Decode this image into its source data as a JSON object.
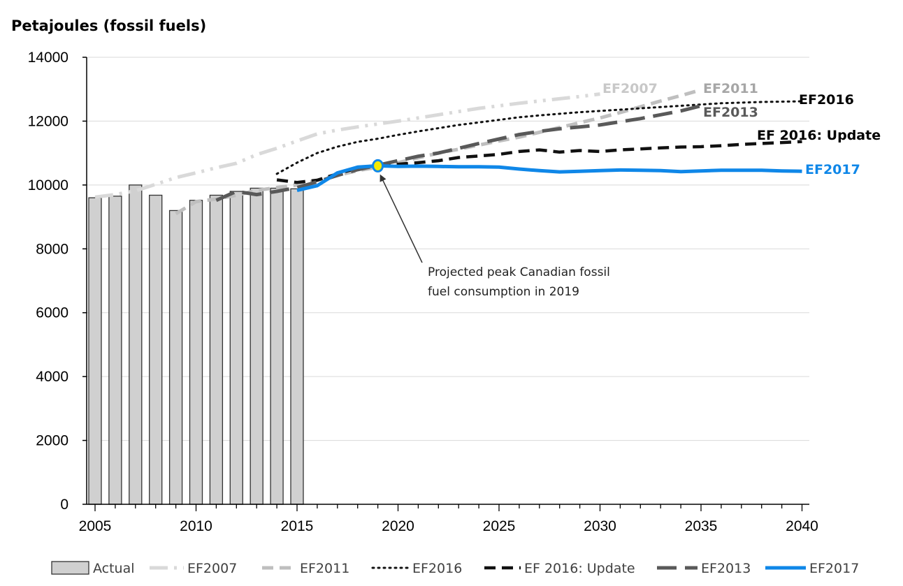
{
  "chart_data": {
    "type": "line",
    "title": "",
    "ylabel": "Petajoules (fossil fuels)",
    "xlabel": "",
    "xlim": [
      2005,
      2040
    ],
    "ylim": [
      0,
      14000
    ],
    "xticks": [
      2005,
      2010,
      2015,
      2020,
      2025,
      2030,
      2035,
      2040
    ],
    "yticks": [
      0,
      2000,
      4000,
      6000,
      8000,
      10000,
      12000,
      14000
    ],
    "grid": "horizontal",
    "legend_position": "bottom",
    "bars": {
      "name": "Actual",
      "color": "#d0d0d0",
      "x": [
        2005,
        2006,
        2007,
        2008,
        2009,
        2010,
        2011,
        2012,
        2013,
        2014,
        2015
      ],
      "values": [
        9600,
        9650,
        10000,
        9680,
        9200,
        9520,
        9680,
        9800,
        9900,
        9900,
        9880
      ]
    },
    "series": [
      {
        "name": "EF2007",
        "label": "EF2007",
        "color": "#d9d9d9",
        "style": "dashdotdot",
        "width": 5,
        "x": [
          2005,
          2006,
          2007,
          2008,
          2009,
          2010,
          2011,
          2012,
          2013,
          2014,
          2015,
          2016,
          2017,
          2018,
          2019,
          2020,
          2021,
          2022,
          2023,
          2024,
          2025,
          2026,
          2027,
          2028,
          2029,
          2030
        ],
        "y": [
          9620,
          9700,
          9820,
          10020,
          10230,
          10380,
          10540,
          10680,
          10950,
          11150,
          11380,
          11600,
          11720,
          11820,
          11910,
          12000,
          12100,
          12200,
          12300,
          12400,
          12480,
          12560,
          12630,
          12700,
          12770,
          12850
        ]
      },
      {
        "name": "EF2011",
        "label": "EF2011",
        "color": "#bfbfbf",
        "style": "dash",
        "width": 5,
        "x": [
          2009,
          2010,
          2011,
          2012,
          2013,
          2014,
          2015,
          2016,
          2017,
          2018,
          2019,
          2020,
          2021,
          2022,
          2023,
          2024,
          2025,
          2026,
          2027,
          2028,
          2029,
          2030,
          2031,
          2032,
          2033,
          2034,
          2035
        ],
        "y": [
          9100,
          9480,
          9560,
          9680,
          9830,
          9920,
          10000,
          10150,
          10300,
          10450,
          10560,
          10700,
          10850,
          11000,
          11120,
          11250,
          11380,
          11500,
          11650,
          11800,
          11950,
          12100,
          12270,
          12450,
          12630,
          12800,
          12980
        ]
      },
      {
        "name": "EF2016",
        "label": "EF2016",
        "color": "#111111",
        "style": "dot",
        "width": 3,
        "x": [
          2014,
          2015,
          2016,
          2017,
          2018,
          2019,
          2020,
          2021,
          2022,
          2023,
          2024,
          2025,
          2026,
          2027,
          2028,
          2029,
          2030,
          2031,
          2032,
          2033,
          2034,
          2035,
          2036,
          2037,
          2038,
          2039,
          2040
        ],
        "y": [
          10350,
          10700,
          11000,
          11200,
          11350,
          11450,
          11570,
          11680,
          11780,
          11880,
          11960,
          12040,
          12120,
          12180,
          12230,
          12280,
          12320,
          12360,
          12400,
          12440,
          12480,
          12520,
          12560,
          12580,
          12600,
          12610,
          12620
        ]
      },
      {
        "name": "EF 2016: Update",
        "label": "EF 2016: Update",
        "color": "#111111",
        "style": "dash",
        "width": 4.5,
        "x": [
          2014,
          2015,
          2016,
          2017,
          2018,
          2019,
          2020,
          2021,
          2022,
          2023,
          2024,
          2025,
          2026,
          2027,
          2028,
          2029,
          2030,
          2031,
          2032,
          2033,
          2034,
          2035,
          2036,
          2037,
          2038,
          2039,
          2040
        ],
        "y": [
          10160,
          10080,
          10150,
          10350,
          10530,
          10620,
          10650,
          10700,
          10760,
          10860,
          10910,
          10960,
          11050,
          11100,
          11030,
          11080,
          11050,
          11100,
          11130,
          11160,
          11190,
          11200,
          11230,
          11270,
          11300,
          11330,
          11360
        ]
      },
      {
        "name": "EF2013",
        "label": "EF2013",
        "color": "#595959",
        "style": "longdash",
        "width": 5,
        "x": [
          2011,
          2012,
          2013,
          2014,
          2015,
          2016,
          2017,
          2018,
          2019,
          2020,
          2021,
          2022,
          2023,
          2024,
          2025,
          2026,
          2027,
          2028,
          2029,
          2030,
          2031,
          2032,
          2033,
          2034,
          2035
        ],
        "y": [
          9520,
          9800,
          9700,
          9800,
          9920,
          10100,
          10300,
          10480,
          10620,
          10760,
          10900,
          11000,
          11150,
          11300,
          11440,
          11580,
          11680,
          11760,
          11820,
          11880,
          11980,
          12080,
          12200,
          12320,
          12480
        ]
      },
      {
        "name": "EF2017",
        "label": "EF2017",
        "color": "#0f87e8",
        "style": "solid",
        "width": 5,
        "x": [
          2015,
          2016,
          2017,
          2018,
          2019,
          2020,
          2021,
          2022,
          2023,
          2024,
          2025,
          2026,
          2027,
          2028,
          2029,
          2030,
          2031,
          2032,
          2033,
          2034,
          2035,
          2036,
          2037,
          2038,
          2039,
          2040
        ],
        "y": [
          9830,
          9980,
          10380,
          10560,
          10600,
          10580,
          10590,
          10580,
          10570,
          10570,
          10560,
          10500,
          10450,
          10410,
          10430,
          10450,
          10470,
          10460,
          10450,
          10420,
          10440,
          10460,
          10460,
          10460,
          10440,
          10430
        ]
      }
    ],
    "peak_marker": {
      "x": 2019,
      "y": 10600
    },
    "annotation": {
      "line1": "Projected peak Canadian fossil",
      "line2": "fuel consumption in 2019"
    }
  }
}
